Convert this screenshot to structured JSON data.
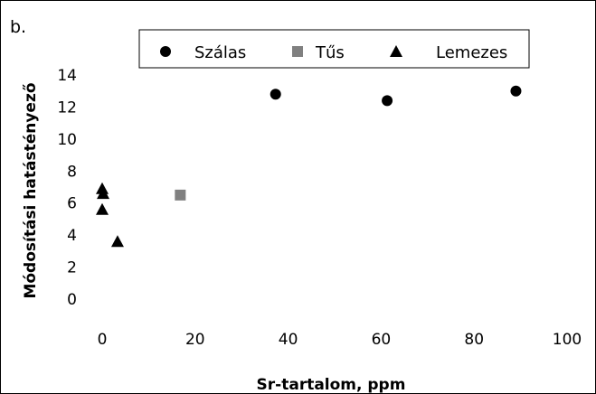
{
  "panel_label": "b.",
  "chart_data": {
    "type": "scatter",
    "xlabel": "Sr-tartalom, ppm",
    "ylabel": "Módosítási hatástényező",
    "xlim": [
      0,
      100
    ],
    "ylim": [
      0,
      14
    ],
    "xticks": [
      0,
      20,
      40,
      60,
      80,
      100
    ],
    "yticks": [
      0,
      2,
      4,
      6,
      8,
      10,
      12,
      14
    ],
    "grid": false,
    "legend_position": "top",
    "series": [
      {
        "name": "Szálas",
        "marker": "circle",
        "color": "#000000",
        "points": [
          [
            37.3,
            12.8
          ],
          [
            61.3,
            12.4
          ],
          [
            89.0,
            13.0
          ]
        ]
      },
      {
        "name": "Tűs",
        "marker": "square",
        "color": "#808080",
        "points": [
          [
            16.8,
            6.5
          ]
        ]
      },
      {
        "name": "Lemezes",
        "marker": "triangle",
        "color": "#000000",
        "points": [
          [
            0.0,
            6.9
          ],
          [
            0.2,
            6.6
          ],
          [
            0.0,
            5.6
          ],
          [
            3.3,
            3.6
          ]
        ]
      }
    ]
  }
}
